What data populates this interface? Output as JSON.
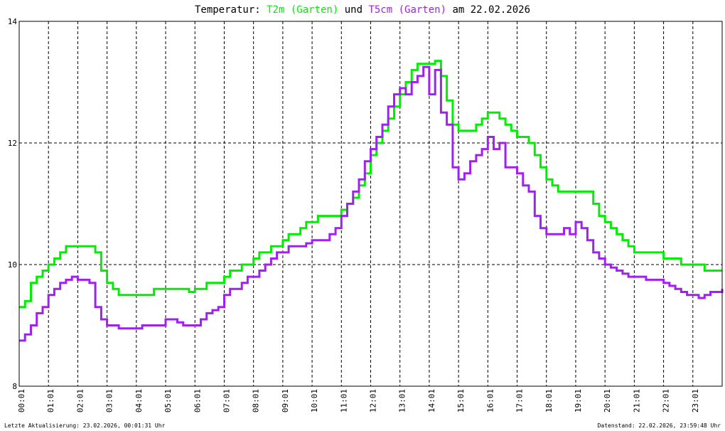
{
  "header": {
    "title_prefix": "Temperatur: ",
    "series1_label": "T2m (Garten)",
    "joiner": " und ",
    "series2_label": "T5cm (Garten)",
    "title_suffix": " am 22.02.2026"
  },
  "footer": {
    "left": "Letzte Aktualisierung: 23.02.2026, 00:01:31 Uhr",
    "right": "Datenstand: 22.02.2026, 23:59:48 Uhr"
  },
  "colors": {
    "t2m": "#00ee00",
    "t5cm": "#a020f0",
    "grid": "#000000",
    "background": "#ffffff"
  },
  "chart_data": {
    "type": "line",
    "title": "Temperatur: T2m (Garten) und T5cm (Garten) am 22.02.2026",
    "xlim": [
      0,
      24
    ],
    "ylim": [
      8,
      14
    ],
    "yticks": [
      8,
      10,
      12,
      14
    ],
    "xtick_labels": [
      "00:01",
      "01:01",
      "02:01",
      "03:01",
      "04:01",
      "05:01",
      "06:01",
      "07:01",
      "08:01",
      "09:01",
      "10:01",
      "11:01",
      "12:01",
      "13:01",
      "14:01",
      "15:01",
      "16:01",
      "17:01",
      "18:01",
      "19:01",
      "20:01",
      "21:01",
      "22:01",
      "23:01"
    ],
    "grid": true,
    "legend": "in title",
    "series": [
      {
        "name": "T2m (Garten)",
        "x": [
          0.0,
          0.2,
          0.4,
          0.6,
          0.8,
          1.0,
          1.2,
          1.4,
          1.6,
          1.8,
          2.0,
          2.2,
          2.4,
          2.6,
          2.8,
          3.0,
          3.2,
          3.4,
          3.6,
          3.8,
          4.0,
          4.2,
          4.4,
          4.6,
          4.8,
          5.0,
          5.2,
          5.4,
          5.6,
          5.8,
          6.0,
          6.2,
          6.4,
          6.6,
          6.8,
          7.0,
          7.2,
          7.4,
          7.6,
          7.8,
          8.0,
          8.2,
          8.4,
          8.6,
          8.8,
          9.0,
          9.2,
          9.4,
          9.6,
          9.8,
          10.0,
          10.2,
          10.4,
          10.6,
          10.8,
          11.0,
          11.2,
          11.4,
          11.6,
          11.8,
          12.0,
          12.2,
          12.4,
          12.6,
          12.8,
          13.0,
          13.2,
          13.4,
          13.6,
          13.8,
          14.0,
          14.2,
          14.4,
          14.6,
          14.8,
          15.0,
          15.2,
          15.4,
          15.6,
          15.8,
          16.0,
          16.2,
          16.4,
          16.6,
          16.8,
          17.0,
          17.2,
          17.4,
          17.6,
          17.8,
          18.0,
          18.2,
          18.4,
          18.6,
          18.8,
          19.0,
          19.2,
          19.4,
          19.6,
          19.8,
          20.0,
          20.2,
          20.4,
          20.6,
          20.8,
          21.0,
          21.2,
          21.4,
          21.6,
          21.8,
          22.0,
          22.2,
          22.4,
          22.6,
          22.8,
          23.0,
          23.2,
          23.4,
          23.6,
          23.8,
          24.0
        ],
        "values": [
          9.3,
          9.4,
          9.7,
          9.8,
          9.9,
          10.0,
          10.1,
          10.2,
          10.3,
          10.3,
          10.3,
          10.3,
          10.3,
          10.2,
          9.9,
          9.7,
          9.6,
          9.5,
          9.5,
          9.5,
          9.5,
          9.5,
          9.5,
          9.6,
          9.6,
          9.6,
          9.6,
          9.6,
          9.6,
          9.55,
          9.6,
          9.6,
          9.7,
          9.7,
          9.7,
          9.8,
          9.9,
          9.9,
          10.0,
          10.0,
          10.1,
          10.2,
          10.2,
          10.3,
          10.3,
          10.4,
          10.5,
          10.5,
          10.6,
          10.7,
          10.7,
          10.8,
          10.8,
          10.8,
          10.8,
          10.9,
          11.0,
          11.1,
          11.3,
          11.5,
          11.8,
          12.0,
          12.2,
          12.4,
          12.6,
          12.8,
          13.0,
          13.2,
          13.3,
          13.3,
          13.3,
          13.35,
          13.1,
          12.7,
          12.3,
          12.2,
          12.2,
          12.2,
          12.3,
          12.4,
          12.5,
          12.5,
          12.4,
          12.3,
          12.2,
          12.1,
          12.1,
          12.0,
          11.8,
          11.6,
          11.4,
          11.3,
          11.2,
          11.2,
          11.2,
          11.2,
          11.2,
          11.2,
          11.0,
          10.8,
          10.7,
          10.6,
          10.5,
          10.4,
          10.3,
          10.2,
          10.2,
          10.2,
          10.2,
          10.2,
          10.1,
          10.1,
          10.1,
          10.0,
          10.0,
          10.0,
          10.0,
          9.9,
          9.9,
          9.9,
          9.9
        ]
      },
      {
        "name": "T5cm (Garten)",
        "x": [
          0.0,
          0.2,
          0.4,
          0.6,
          0.8,
          1.0,
          1.2,
          1.4,
          1.6,
          1.8,
          2.0,
          2.2,
          2.4,
          2.6,
          2.8,
          3.0,
          3.2,
          3.4,
          3.6,
          3.8,
          4.0,
          4.2,
          4.4,
          4.6,
          4.8,
          5.0,
          5.2,
          5.4,
          5.6,
          5.8,
          6.0,
          6.2,
          6.4,
          6.6,
          6.8,
          7.0,
          7.2,
          7.4,
          7.6,
          7.8,
          8.0,
          8.2,
          8.4,
          8.6,
          8.8,
          9.0,
          9.2,
          9.4,
          9.6,
          9.8,
          10.0,
          10.2,
          10.4,
          10.6,
          10.8,
          11.0,
          11.2,
          11.4,
          11.6,
          11.8,
          12.0,
          12.2,
          12.4,
          12.6,
          12.8,
          13.0,
          13.2,
          13.4,
          13.6,
          13.8,
          14.0,
          14.2,
          14.4,
          14.6,
          14.8,
          15.0,
          15.2,
          15.4,
          15.6,
          15.8,
          16.0,
          16.2,
          16.4,
          16.6,
          16.8,
          17.0,
          17.2,
          17.4,
          17.6,
          17.8,
          18.0,
          18.2,
          18.4,
          18.6,
          18.8,
          19.0,
          19.2,
          19.4,
          19.6,
          19.8,
          20.0,
          20.2,
          20.4,
          20.6,
          20.8,
          21.0,
          21.2,
          21.4,
          21.6,
          21.8,
          22.0,
          22.2,
          22.4,
          22.6,
          22.8,
          23.0,
          23.2,
          23.4,
          23.6,
          23.8,
          24.0
        ],
        "values": [
          8.75,
          8.85,
          9.0,
          9.2,
          9.3,
          9.5,
          9.6,
          9.7,
          9.75,
          9.8,
          9.75,
          9.75,
          9.7,
          9.3,
          9.1,
          9.0,
          9.0,
          8.95,
          8.95,
          8.95,
          8.95,
          9.0,
          9.0,
          9.0,
          9.0,
          9.1,
          9.1,
          9.05,
          9.0,
          9.0,
          9.0,
          9.1,
          9.2,
          9.25,
          9.3,
          9.5,
          9.6,
          9.6,
          9.7,
          9.8,
          9.8,
          9.9,
          10.0,
          10.1,
          10.2,
          10.2,
          10.3,
          10.3,
          10.3,
          10.35,
          10.4,
          10.4,
          10.4,
          10.5,
          10.6,
          10.8,
          11.0,
          11.2,
          11.4,
          11.7,
          11.9,
          12.1,
          12.3,
          12.6,
          12.8,
          12.9,
          12.8,
          13.0,
          13.1,
          13.25,
          12.8,
          13.2,
          12.5,
          12.3,
          11.6,
          11.4,
          11.5,
          11.7,
          11.8,
          11.9,
          12.1,
          11.9,
          12.0,
          11.6,
          11.6,
          11.5,
          11.3,
          11.2,
          10.8,
          10.6,
          10.5,
          10.5,
          10.5,
          10.6,
          10.5,
          10.7,
          10.6,
          10.4,
          10.2,
          10.1,
          10.0,
          9.95,
          9.9,
          9.85,
          9.8,
          9.8,
          9.8,
          9.75,
          9.75,
          9.75,
          9.7,
          9.65,
          9.6,
          9.55,
          9.5,
          9.5,
          9.45,
          9.5,
          9.55,
          9.55,
          9.6
        ]
      }
    ]
  }
}
